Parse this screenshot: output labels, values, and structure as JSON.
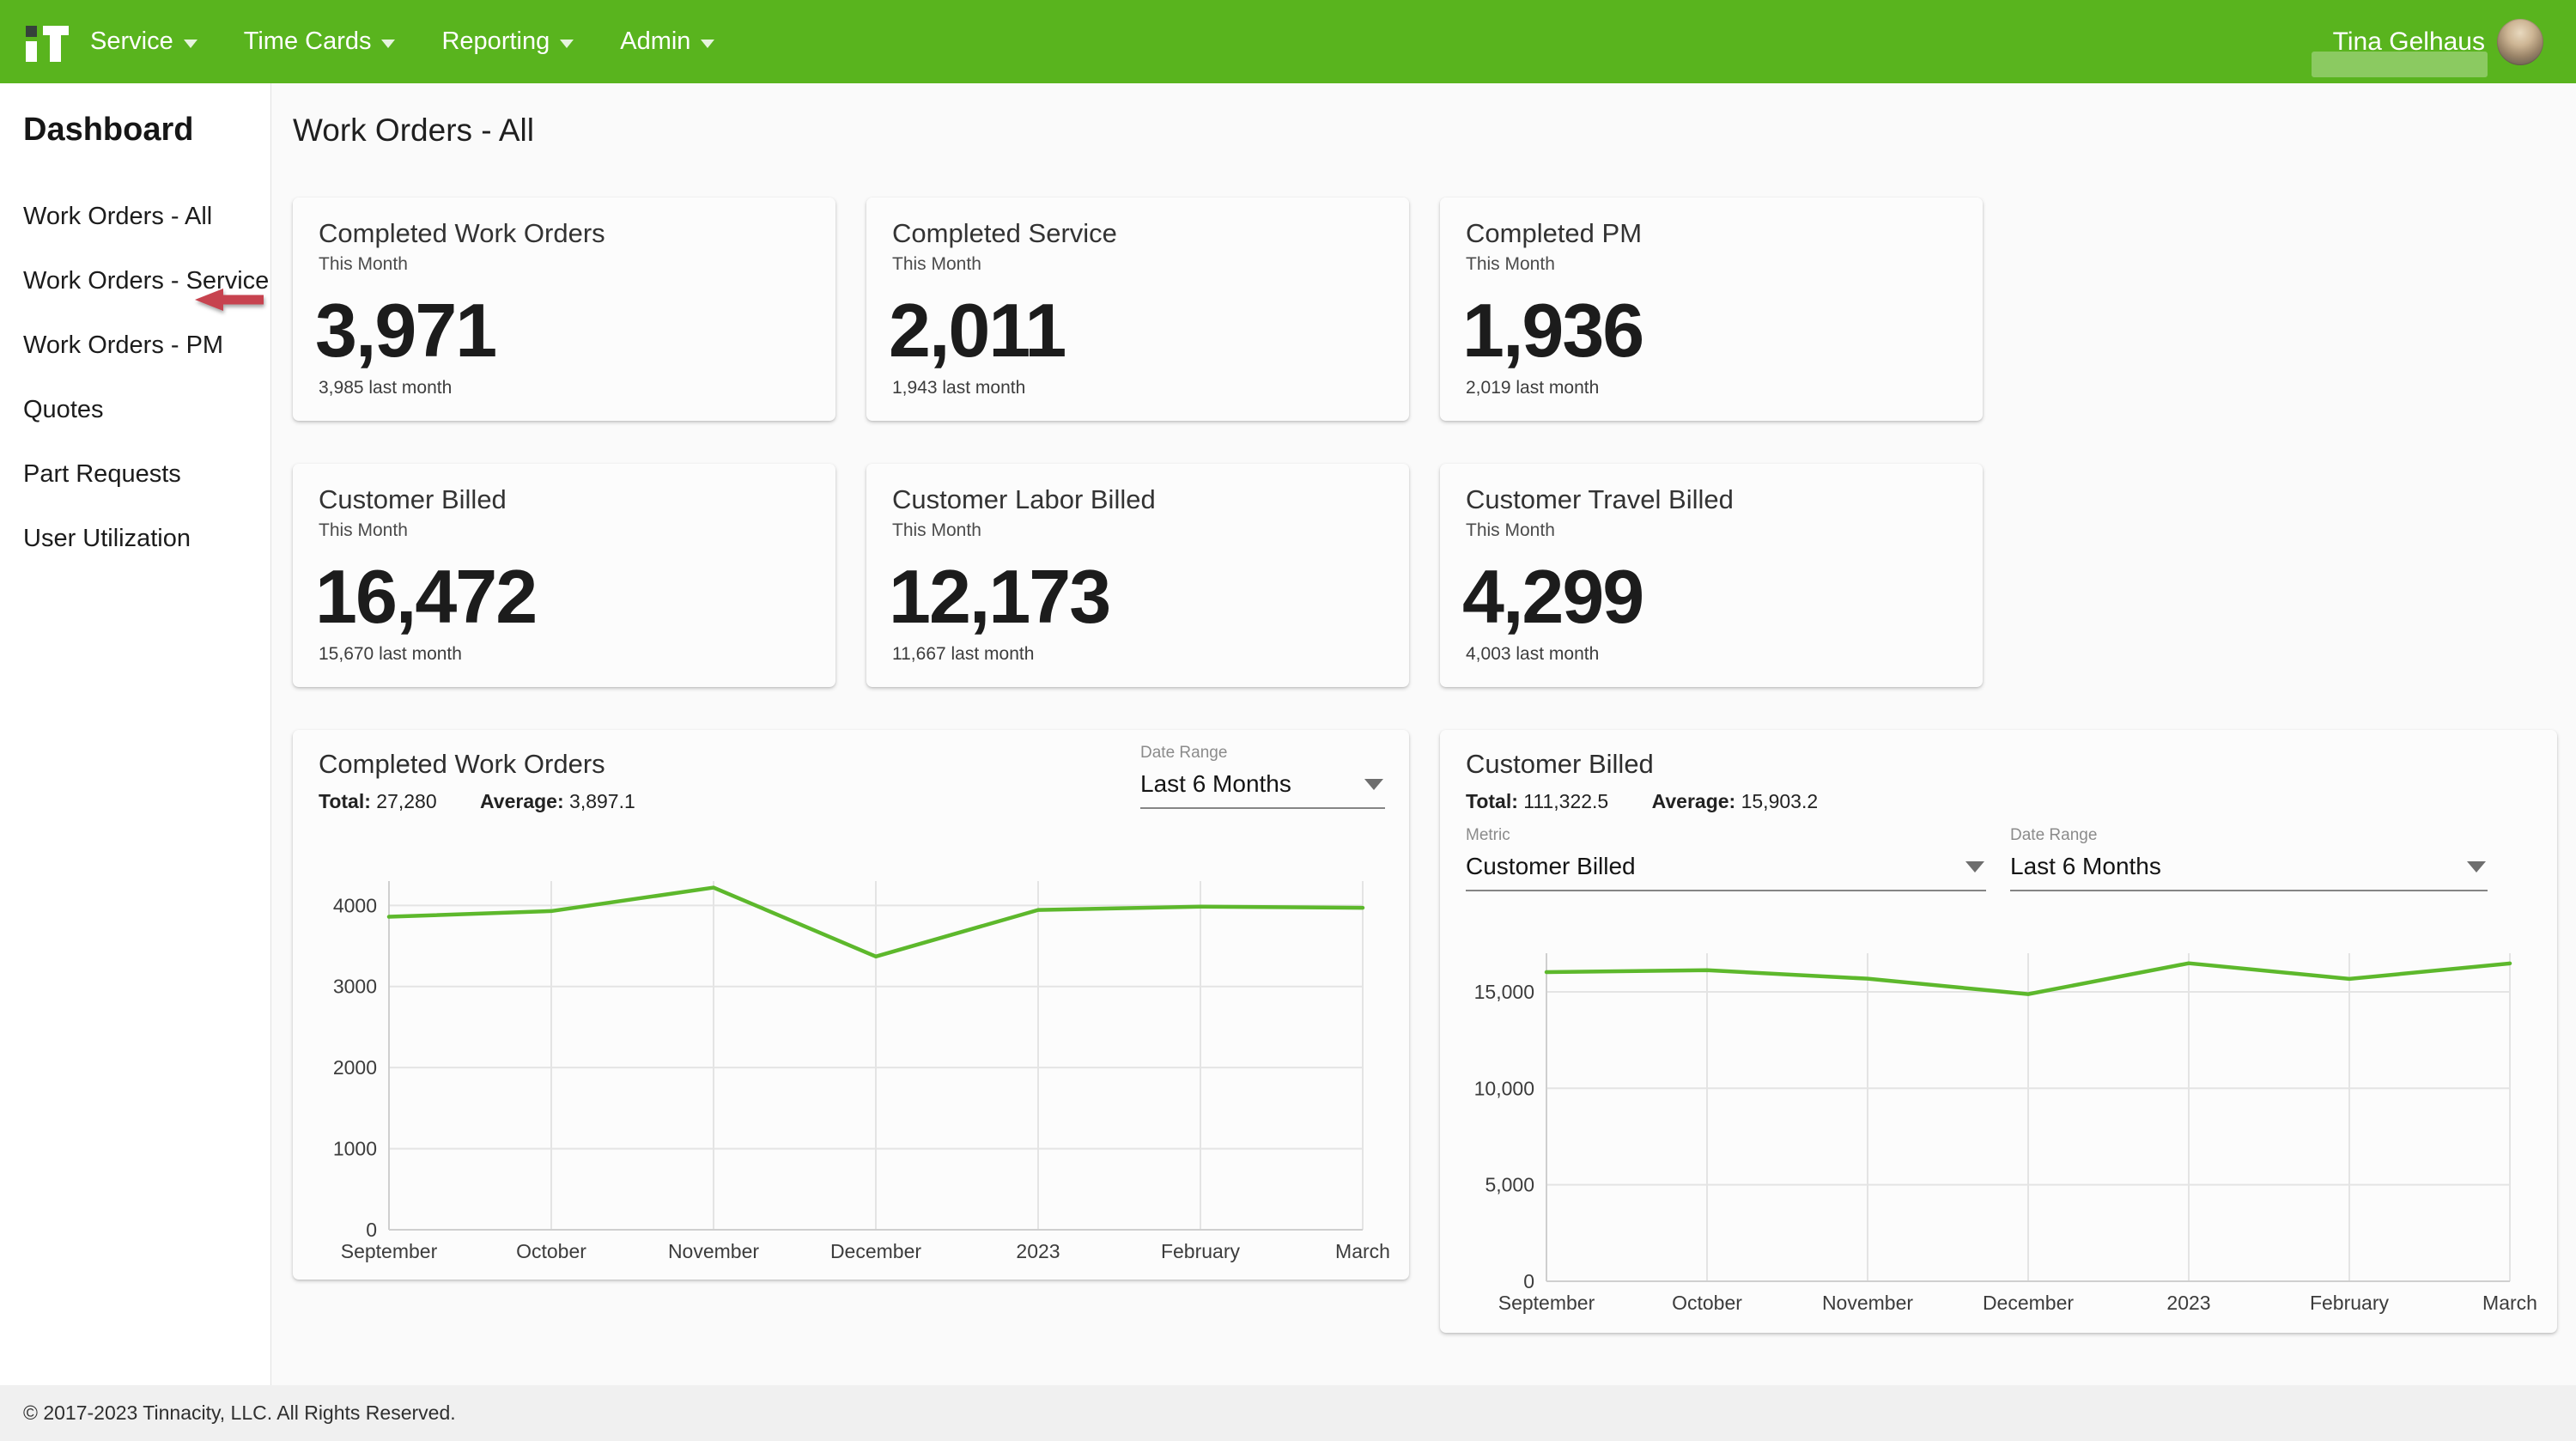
{
  "topnav": {
    "logo_text": "iT",
    "items": [
      {
        "label": "Service"
      },
      {
        "label": "Time Cards"
      },
      {
        "label": "Reporting"
      },
      {
        "label": "Admin"
      }
    ],
    "user_name": "Tina Gelhaus"
  },
  "sidebar": {
    "title": "Dashboard",
    "items": [
      {
        "label": "Work Orders - All",
        "active": true
      },
      {
        "label": "Work Orders - Service",
        "active": false
      },
      {
        "label": "Work Orders - PM",
        "active": false
      },
      {
        "label": "Quotes",
        "active": false
      },
      {
        "label": "Part Requests",
        "active": false
      },
      {
        "label": "User Utilization",
        "active": false
      }
    ]
  },
  "page": {
    "title": "Work Orders - All"
  },
  "stat_cards": [
    {
      "title": "Completed Work Orders",
      "period": "This Month",
      "value": "3,971",
      "compare": "3,985 last month"
    },
    {
      "title": "Completed Service",
      "period": "This Month",
      "value": "2,011",
      "compare": "1,943 last month"
    },
    {
      "title": "Completed PM",
      "period": "This Month",
      "value": "1,936",
      "compare": "2,019 last month"
    },
    {
      "title": "Customer Billed",
      "period": "This Month",
      "value": "16,472",
      "compare": "15,670 last month"
    },
    {
      "title": "Customer Labor Billed",
      "period": "This Month",
      "value": "12,173",
      "compare": "11,667 last month"
    },
    {
      "title": "Customer Travel Billed",
      "period": "This Month",
      "value": "4,299",
      "compare": "4,003 last month"
    }
  ],
  "chart_cards": [
    {
      "title": "Completed Work Orders",
      "total_label": "Total:",
      "total": "27,280",
      "average_label": "Average:",
      "average": "3,897.1",
      "date_range_label": "Date Range",
      "date_range_value": "Last 6 Months"
    },
    {
      "title": "Customer Billed",
      "total_label": "Total:",
      "total": "111,322.5",
      "average_label": "Average:",
      "average": "15,903.2",
      "metric_label": "Metric",
      "metric_value": "Customer Billed",
      "date_range_label": "Date Range",
      "date_range_value": "Last 6 Months"
    }
  ],
  "chart_data": [
    {
      "type": "line",
      "title": "Completed Work Orders",
      "x": [
        "September",
        "October",
        "November",
        "December",
        "2023",
        "February",
        "March"
      ],
      "series": [
        {
          "name": "Completed Work Orders",
          "values": [
            3860,
            3930,
            4220,
            3370,
            3944,
            3985,
            3971
          ]
        }
      ],
      "total": 27280,
      "average": 3897.1,
      "ylim": [
        0,
        4300
      ],
      "yticks": [
        0,
        1000,
        2000,
        3000,
        4000
      ],
      "tick_format": "plain",
      "grid": true,
      "legend": "none"
    },
    {
      "type": "line",
      "title": "Customer Billed",
      "x": [
        "September",
        "October",
        "November",
        "December",
        "2023",
        "February",
        "March"
      ],
      "series": [
        {
          "name": "Customer Billed",
          "values": [
            16020,
            16120,
            15680,
            14880.5,
            16480,
            15670,
            16472
          ]
        }
      ],
      "total": 111322.5,
      "average": 15903.2,
      "ylim": [
        0,
        17000
      ],
      "yticks": [
        0,
        5000,
        10000,
        15000
      ],
      "tick_format": "comma",
      "grid": true,
      "legend": "none"
    }
  ],
  "footer": {
    "copyright": "© 2017-2023 Tinnacity, LLC. All Rights Reserved."
  },
  "colors": {
    "nav_green": "#59b41e",
    "line_green": "#5db82c",
    "arrow_red": "#c7434f",
    "grid_gray": "#e4e4e4",
    "axis_gray": "#cfcfcf"
  }
}
